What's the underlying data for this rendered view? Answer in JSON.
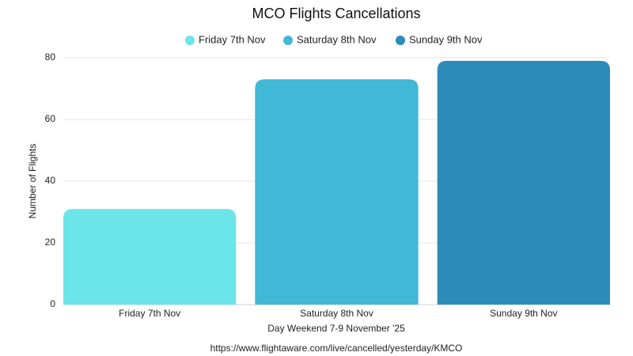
{
  "chart_data": {
    "type": "bar",
    "title": "MCO Flights Cancellations",
    "categories": [
      "Friday 7th Nov",
      "Saturday 8th Nov",
      "Sunday 9th Nov"
    ],
    "values": [
      31,
      73,
      79
    ],
    "colors": [
      "#6ce5e8",
      "#41b8d5",
      "#2d8bba"
    ],
    "x_label": "Day Weekend 7-9 November '25",
    "y_label": "Number of Flights",
    "source": "https://www.flightaware.com/live/cancelled/yesterday/KMCO",
    "ylim": [
      0,
      80
    ],
    "yticks": [
      0,
      20,
      40,
      60,
      80
    ],
    "grid": true,
    "legend": "top"
  }
}
